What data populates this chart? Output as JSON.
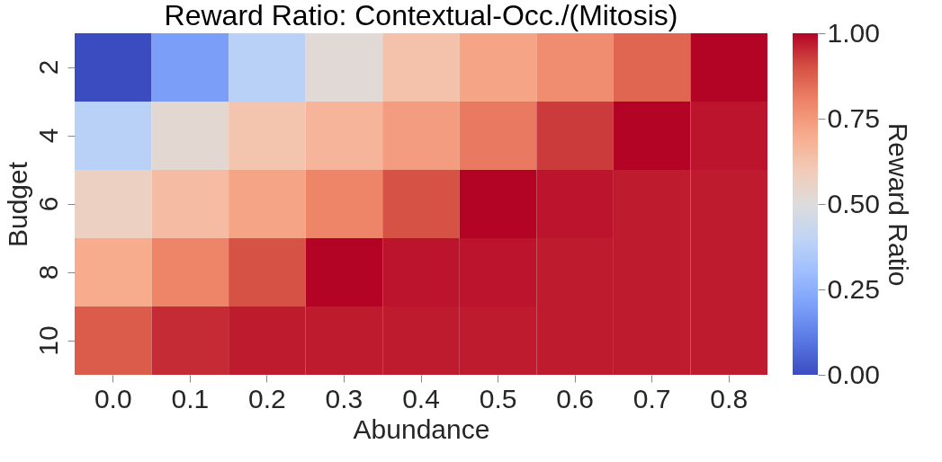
{
  "chart_data": {
    "type": "heatmap",
    "title": "Reward Ratio: Contextual-Occ./(Mitosis)",
    "xlabel": "Abundance",
    "ylabel": "Budget",
    "clabel": "Reward Ratio",
    "categories": [
      "0.0",
      "0.1",
      "0.2",
      "0.3",
      "0.4",
      "0.5",
      "0.6",
      "0.7",
      "0.8"
    ],
    "y_categories": [
      "2",
      "4",
      "6",
      "8",
      "10"
    ],
    "cells": [
      [
        0.0,
        0.2,
        0.38,
        0.52,
        0.63,
        0.72,
        0.78,
        0.86,
        1.0
      ],
      [
        0.38,
        0.53,
        0.62,
        0.67,
        0.74,
        0.82,
        0.93,
        1.0,
        0.98
      ],
      [
        0.57,
        0.65,
        0.72,
        0.8,
        0.9,
        1.0,
        0.98,
        0.97,
        0.97
      ],
      [
        0.7,
        0.8,
        0.9,
        1.0,
        0.98,
        0.98,
        0.97,
        0.97,
        0.97
      ],
      [
        0.88,
        0.95,
        0.97,
        0.97,
        0.97,
        0.97,
        0.97,
        0.97,
        0.97
      ]
    ],
    "clim": [
      0,
      1
    ],
    "cticks": [
      {
        "value": 0,
        "label": "0.00"
      },
      {
        "value": 0.25,
        "label": "0.25"
      },
      {
        "value": 0.5,
        "label": "0.50"
      },
      {
        "value": 0.75,
        "label": "0.75"
      },
      {
        "value": 1,
        "label": "1.00"
      }
    ]
  }
}
